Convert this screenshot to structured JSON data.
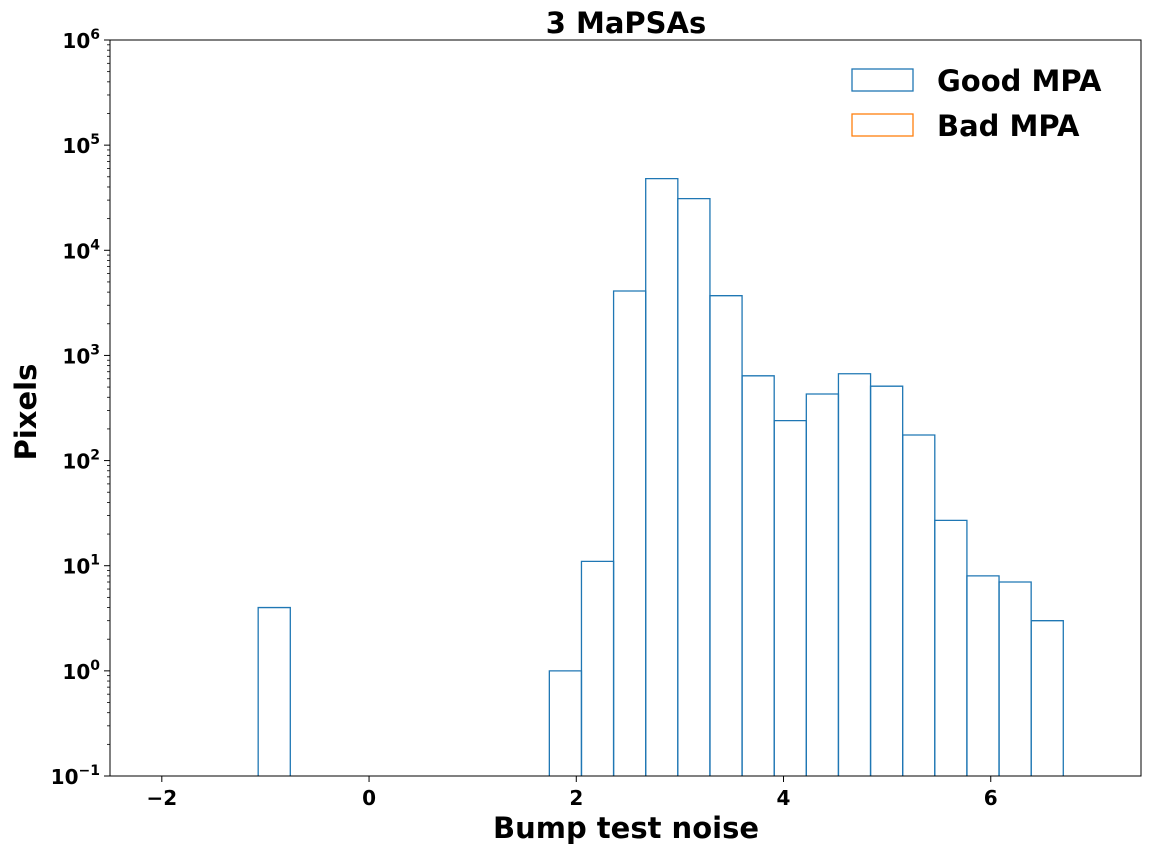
{
  "chart_data": {
    "type": "histogram",
    "title": "3 MaPSAs",
    "xlabel": "Bump test noise",
    "ylabel": "Pixels",
    "xlim": [
      -2.5,
      7.45
    ],
    "ylim": [
      0.1,
      1000000
    ],
    "yscale": "log",
    "grid": false,
    "legend_position": "top-right",
    "x_ticks": [
      {
        "value": -2,
        "label": "−2"
      },
      {
        "value": 0,
        "label": "0"
      },
      {
        "value": 2,
        "label": "2"
      },
      {
        "value": 4,
        "label": "4"
      },
      {
        "value": 6,
        "label": "6"
      }
    ],
    "y_ticks": [
      {
        "value": 0.1,
        "base": "10",
        "exp": "−1"
      },
      {
        "value": 1,
        "base": "10",
        "exp": "0"
      },
      {
        "value": 10,
        "base": "10",
        "exp": "1"
      },
      {
        "value": 100,
        "base": "10",
        "exp": "2"
      },
      {
        "value": 1000,
        "base": "10",
        "exp": "3"
      },
      {
        "value": 10000,
        "base": "10",
        "exp": "4"
      },
      {
        "value": 100000,
        "base": "10",
        "exp": "5"
      },
      {
        "value": 1000000,
        "base": "10",
        "exp": "6"
      }
    ],
    "series": [
      {
        "name": "Good MPA",
        "color": "#1f77b4",
        "bin_edges": [
          -1.07,
          -0.76,
          1.74,
          2.05,
          2.36,
          2.67,
          2.98,
          3.29,
          3.6,
          3.91,
          4.22,
          4.53,
          4.84,
          5.15,
          5.46,
          5.77,
          6.08,
          6.39,
          6.7
        ],
        "counts": [
          4,
          0,
          1,
          11,
          4100,
          48000,
          31000,
          3700,
          640,
          240,
          430,
          670,
          510,
          175,
          27,
          8,
          7,
          3
        ]
      },
      {
        "name": "Bad MPA",
        "color": "#ff7f0e",
        "bin_edges": [],
        "counts": []
      }
    ]
  }
}
